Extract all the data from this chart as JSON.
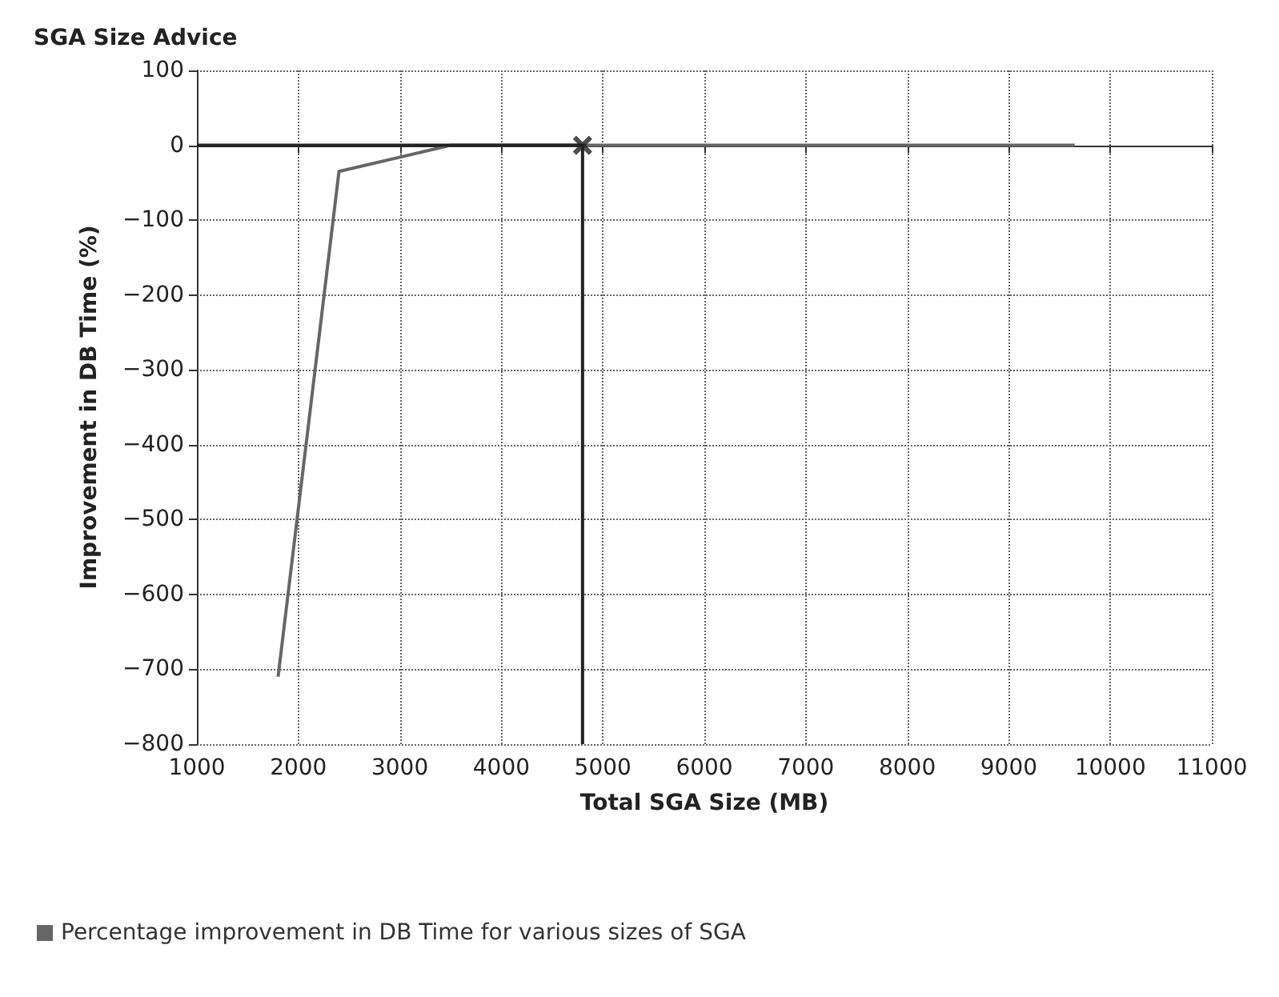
{
  "chart_data": {
    "type": "line",
    "title": "SGA Size Advice",
    "xlabel": "Total SGA Size (MB)",
    "ylabel": "Improvement in DB Time (%)",
    "series": [
      {
        "name": "Percentage improvement in DB Time for various sizes of SGA",
        "color": "#666666",
        "x": [
          1800,
          2400,
          3500,
          4800,
          9650
        ],
        "values": [
          -710,
          -35,
          0,
          0,
          0
        ]
      },
      {
        "type": "line",
        "color": "#222222",
        "x": [
          1000,
          4800,
          4800
        ],
        "values": [
          0,
          0,
          -800
        ]
      },
      {
        "type": "scatter",
        "color": "#222222",
        "marker": "cross",
        "x": [
          4800
        ],
        "values": [
          0
        ]
      }
    ],
    "xlim": [
      1000,
      11000
    ],
    "xticks": [
      1000,
      2000,
      3000,
      4000,
      5000,
      6000,
      7000,
      8000,
      9000,
      10000,
      11000
    ],
    "ylim": [
      -800,
      100
    ],
    "yticks": [
      -800,
      -700,
      -600,
      -500,
      -400,
      -300,
      -200,
      -100,
      0,
      100
    ],
    "grid": true,
    "legend": "bottom left",
    "marker": "none"
  }
}
